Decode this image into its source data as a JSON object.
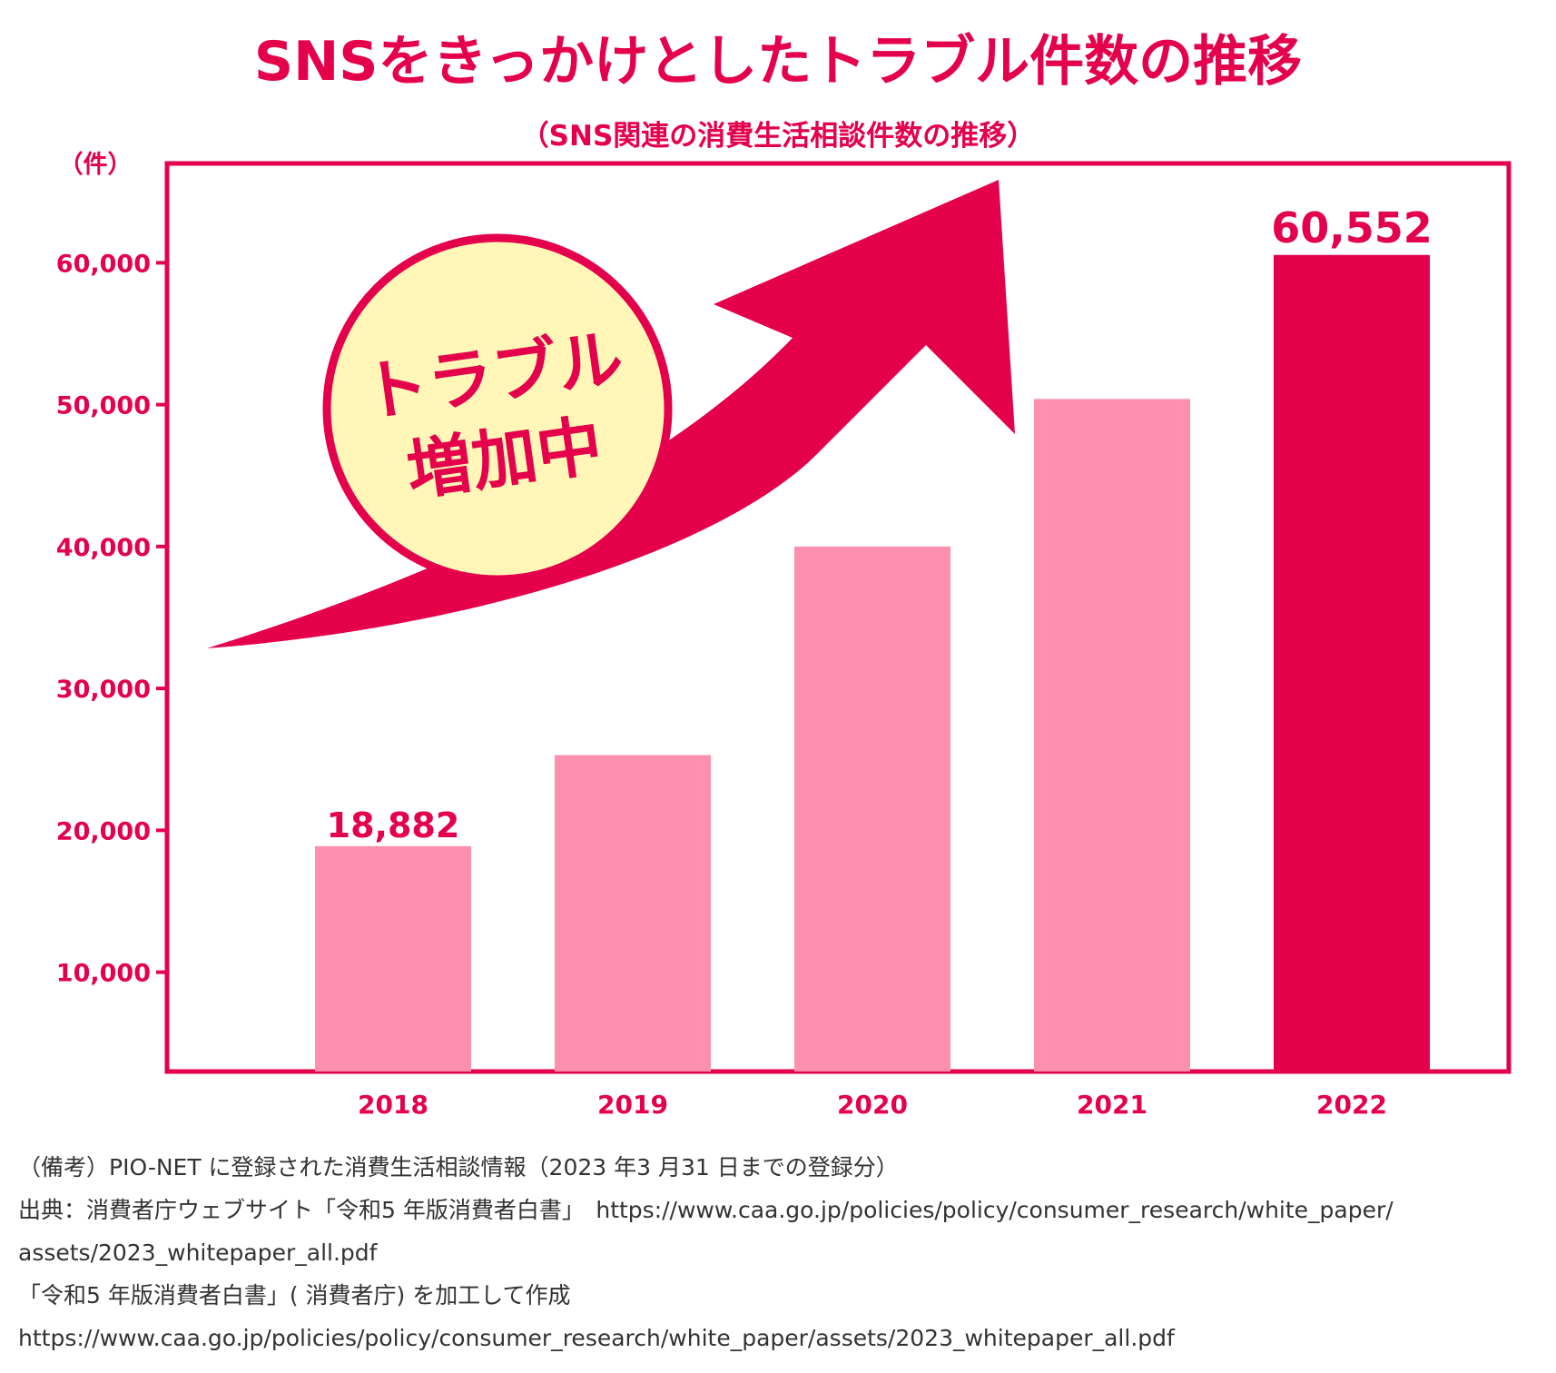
{
  "colors": {
    "accent": "#e4004b",
    "bar_light": "#ff8fae",
    "bar_highlight": "#e4004b",
    "badge_fill": "#fff6b8",
    "note_text": "#333333"
  },
  "badge": {
    "line1": "トラブル",
    "line2": "増加中"
  },
  "chart_data": {
    "type": "bar",
    "title": "SNSをきっかけとしたトラブル件数の推移",
    "subtitle": "（SNS関連の消費生活相談件数の推移）",
    "ylabel": "（件）",
    "categories": [
      "2018",
      "2019",
      "2020",
      "2021",
      "2022"
    ],
    "values": [
      18882,
      25300,
      40000,
      50400,
      60552
    ],
    "highlight_index": 4,
    "data_labels": {
      "0": "18,882",
      "4": "60,552"
    },
    "ylim": [
      3000,
      67000
    ],
    "yticks": [
      10000,
      20000,
      30000,
      40000,
      50000,
      60000
    ],
    "ytick_labels": [
      "10,000",
      "20,000",
      "30,000",
      "40,000",
      "50,000",
      "60,000"
    ],
    "grid": false,
    "legend": "none"
  },
  "notes": {
    "line1": "（備考）PIO-NET に登録された消費生活相談情報（2023 年3 月31 日までの登録分）",
    "line2": "出典：消費者庁ウェブサイト「令和5 年版消費者白書」　https://www.caa.go.jp/policies/policy/consumer_research/white_paper/",
    "line3": "assets/2023_whitepaper_all.pdf",
    "line4": "「令和5 年版消費者白書」( 消費者庁)  を加工して作成",
    "line5": "https://www.caa.go.jp/policies/policy/consumer_research/white_paper/assets/2023_whitepaper_all.pdf"
  }
}
